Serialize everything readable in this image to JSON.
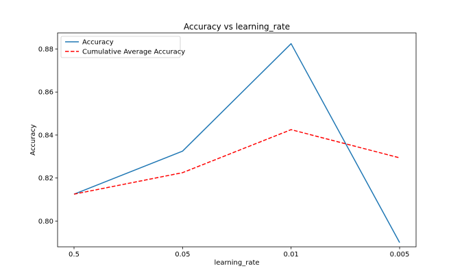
{
  "chart_data": {
    "type": "line",
    "title": "Accuracy vs learning_rate",
    "xlabel": "learning_rate",
    "ylabel": "Accuracy",
    "categories": [
      "0.5",
      "0.05",
      "0.01",
      "0.005"
    ],
    "ylim": [
      0.788,
      0.8875
    ],
    "yticks": [
      "0.80",
      "0.82",
      "0.84",
      "0.86",
      "0.88"
    ],
    "grid": false,
    "legend_position": "top-left",
    "series": [
      {
        "name": "Accuracy",
        "values": [
          0.8125,
          0.8325,
          0.8825,
          0.79
        ],
        "color": "#1f77b4",
        "style": "solid"
      },
      {
        "name": "Cumulative Average Accuracy",
        "values": [
          0.8125,
          0.8225,
          0.8425,
          0.8294
        ],
        "color": "#ff0000",
        "style": "dashed"
      }
    ]
  }
}
